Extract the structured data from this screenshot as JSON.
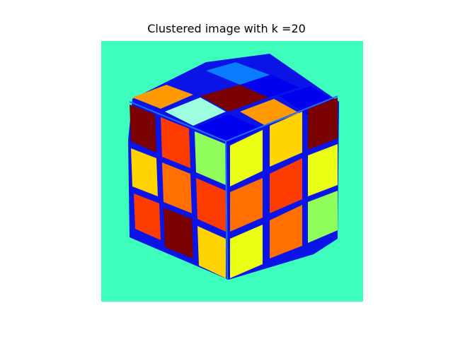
{
  "title": "Clustered image with k =20",
  "colors": {
    "background": "#3dffbb",
    "outline": "#0a14e6",
    "outline_light": "#1e6eff",
    "dark_red": "#7a0000",
    "red_orange": "#ff3c00",
    "orange": "#ff7000",
    "orange_light": "#ff9a00",
    "yellow": "#ffd400",
    "yellow_green": "#eaff14",
    "green": "#90ff5c",
    "blue": "#0000ee",
    "blue_mid": "#0a7cff",
    "cyan_pale": "#9effe0"
  }
}
